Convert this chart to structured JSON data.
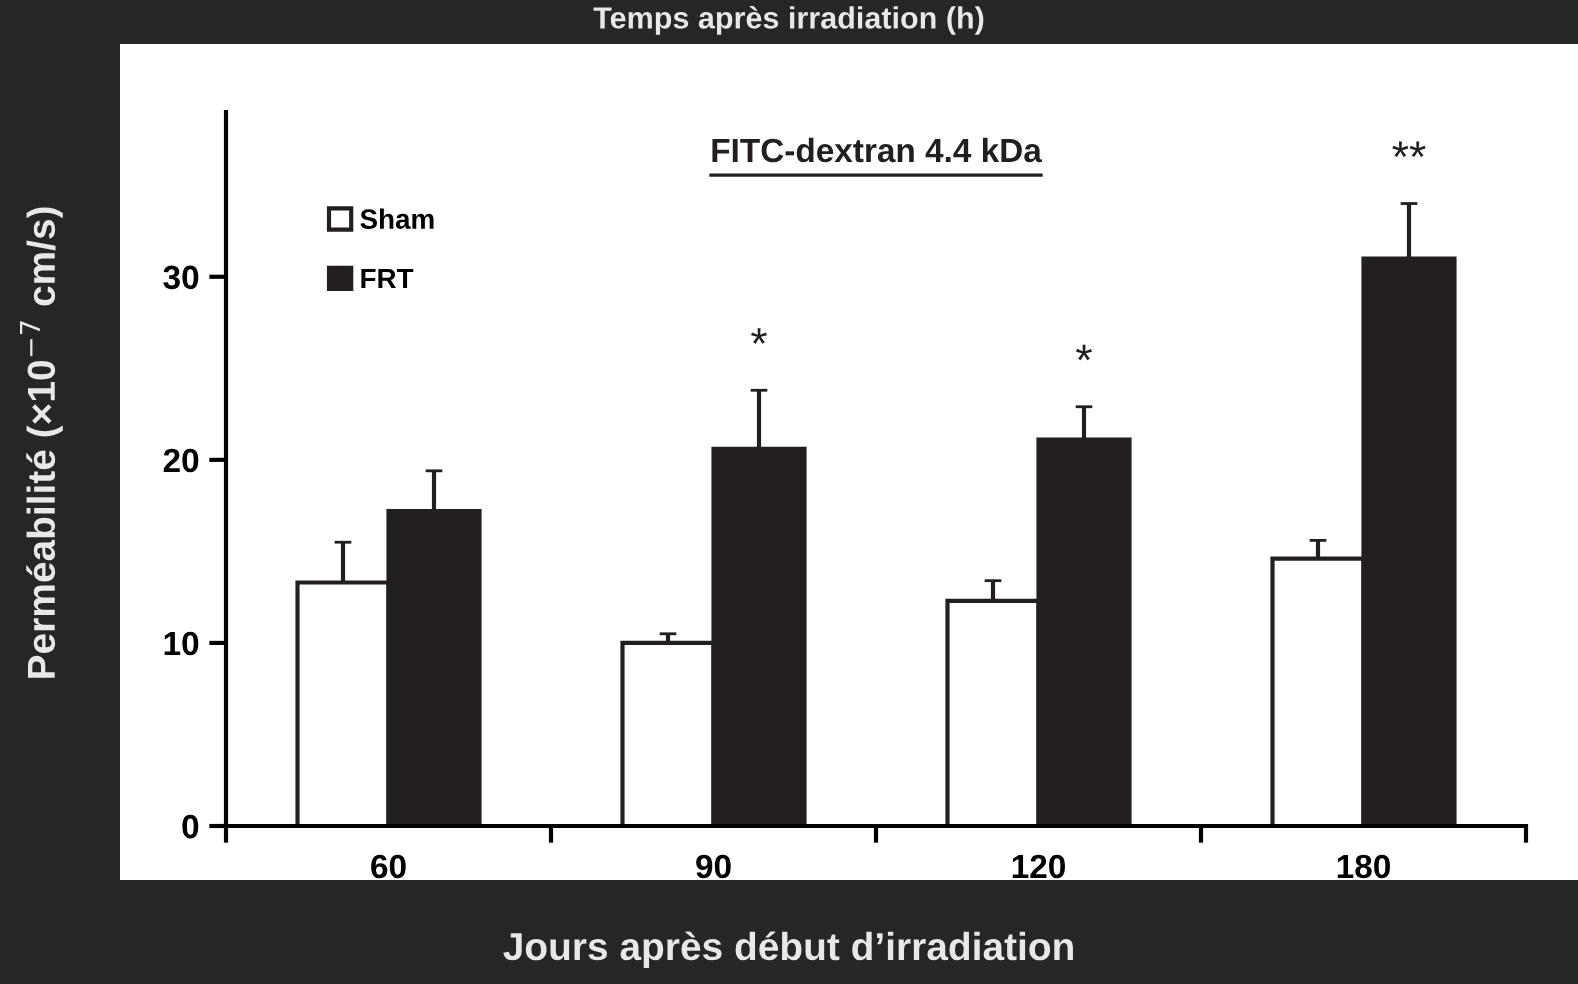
{
  "chart_data": {
    "type": "bar",
    "title": "FITC-dextran 4.4 kDa",
    "xlabel": "Jours après début d’irradiation",
    "ylabel": "Perméabilité (×10$^{−7}$ cm/s)",
    "categories": [
      "60",
      "90",
      "120",
      "180"
    ],
    "series": [
      {
        "name": "Sham",
        "color": "#ffffff",
        "values": [
          13.3,
          10.0,
          12.3,
          14.6
        ],
        "errors": [
          2.2,
          0.5,
          1.1,
          1.0
        ]
      },
      {
        "name": "FRT",
        "color": "#231f20",
        "values": [
          17.2,
          20.6,
          21.1,
          31.0
        ],
        "errors": [
          2.2,
          3.2,
          1.8,
          3.0
        ]
      }
    ],
    "ylim": [
      0,
      39
    ],
    "yticks": [
      0,
      10,
      20,
      30
    ],
    "grid": false,
    "legend": "top left",
    "annotations": [
      "Temps après irradiation (h)",
      {
        "text": "*",
        "x": "90",
        "y": 20.6
      },
      {
        "text": "*",
        "x": "120",
        "y": 21.1
      },
      {
        "text": "**",
        "x": "180",
        "y": 31.0
      }
    ]
  }
}
